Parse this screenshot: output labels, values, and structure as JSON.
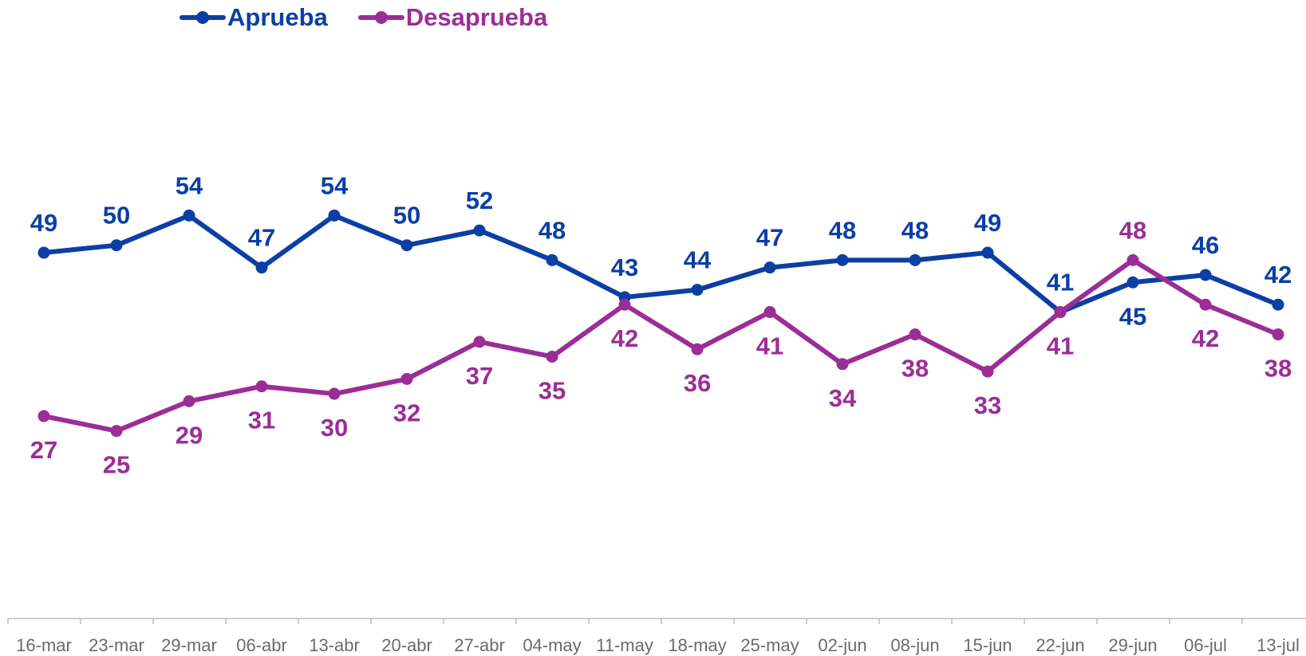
{
  "chart_data": {
    "type": "line",
    "categories": [
      "16-mar",
      "23-mar",
      "29-mar",
      "06-abr",
      "13-abr",
      "20-abr",
      "27-abr",
      "04-may",
      "11-may",
      "18-may",
      "25-may",
      "02-jun",
      "08-jun",
      "15-jun",
      "22-jun",
      "29-jun",
      "06-jul",
      "13-jul"
    ],
    "series": [
      {
        "name": "Aprueba",
        "color": "#0b3fa5",
        "values": [
          49,
          50,
          54,
          47,
          54,
          50,
          52,
          48,
          43,
          44,
          47,
          48,
          48,
          49,
          41,
          45,
          46,
          42
        ],
        "label_position": [
          "above",
          "above",
          "above",
          "above",
          "above",
          "above",
          "above",
          "above",
          "above",
          "above",
          "above",
          "above",
          "above",
          "above",
          "above",
          "below",
          "above",
          "above"
        ]
      },
      {
        "name": "Desaprueba",
        "color": "#9b2e96",
        "values": [
          27,
          25,
          29,
          31,
          30,
          32,
          37,
          35,
          42,
          36,
          41,
          34,
          38,
          33,
          41,
          48,
          42,
          38
        ],
        "label_position": [
          "below",
          "below",
          "below",
          "below",
          "below",
          "below",
          "below",
          "below",
          "below",
          "below",
          "below",
          "below",
          "below",
          "below",
          "below",
          "above",
          "below",
          "below"
        ]
      }
    ],
    "ylim": [
      0,
      63
    ],
    "grid": false,
    "legend_position": "top-left"
  }
}
